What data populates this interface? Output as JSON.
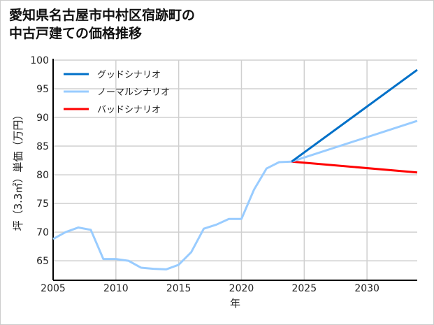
{
  "chart_data": {
    "type": "line",
    "title_lines": [
      "愛知県名古屋市中村区宿跡町の",
      "中古戸建ての価格推移"
    ],
    "xlabel": "年",
    "ylabel": "坪（3.3㎡）単価（万円）",
    "xlim": [
      2005,
      2034
    ],
    "ylim": [
      61.6,
      100
    ],
    "xticks": [
      2005,
      2010,
      2015,
      2020,
      2025,
      2030
    ],
    "yticks": [
      65,
      70,
      75,
      80,
      85,
      90,
      95,
      100
    ],
    "grid": true,
    "legend_position": "top-left",
    "history": {
      "x": [
        2005,
        2006,
        2007,
        2008,
        2009,
        2010,
        2011,
        2012,
        2013,
        2014,
        2015,
        2016,
        2017,
        2018,
        2019,
        2020,
        2021,
        2022,
        2023,
        2024
      ],
      "values": [
        68.8,
        70.0,
        70.8,
        70.4,
        65.3,
        65.3,
        65.0,
        63.8,
        63.6,
        63.5,
        64.3,
        66.5,
        70.6,
        71.3,
        72.3,
        72.3,
        77.4,
        81.1,
        82.2,
        82.3
      ]
    },
    "series": [
      {
        "name": "グッドシナリオ",
        "color": "#0070c8",
        "x": [
          2024,
          2034
        ],
        "values": [
          82.3,
          98.3
        ]
      },
      {
        "name": "ノーマルシナリオ",
        "color": "#99ccff",
        "x": [
          2024,
          2034
        ],
        "values": [
          82.3,
          89.4
        ]
      },
      {
        "name": "バッドシナリオ",
        "color": "#ff0000",
        "x": [
          2024,
          2034
        ],
        "values": [
          82.3,
          80.4
        ]
      }
    ]
  }
}
